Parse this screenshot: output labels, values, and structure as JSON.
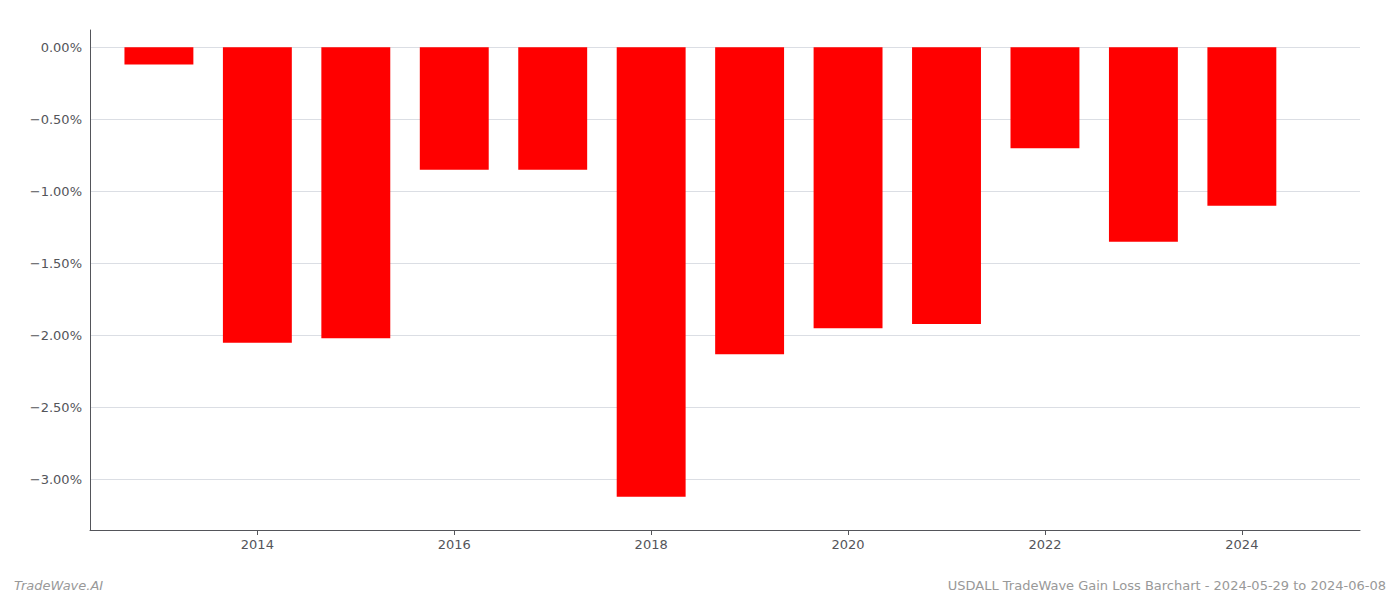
{
  "chart_data": {
    "type": "bar",
    "x": [
      2013,
      2014,
      2015,
      2016,
      2017,
      2018,
      2019,
      2020,
      2021,
      2022,
      2023,
      2024
    ],
    "values": [
      -0.12,
      -2.05,
      -2.02,
      -0.85,
      -0.85,
      -3.12,
      -2.13,
      -1.95,
      -1.92,
      -0.7,
      -1.35,
      -1.1
    ],
    "color": "#ff0000",
    "xlim": [
      2012.3,
      2025.2
    ],
    "xticks": [
      2014,
      2016,
      2018,
      2020,
      2022,
      2024
    ],
    "ylim": [
      -3.35,
      0.12
    ],
    "yticks": [
      {
        "value": 0.0,
        "label": "0.00%"
      },
      {
        "value": -0.5,
        "label": "−0.50%"
      },
      {
        "value": -1.0,
        "label": "−1.00%"
      },
      {
        "value": -1.5,
        "label": "−1.50%"
      },
      {
        "value": -2.0,
        "label": "−2.00%"
      },
      {
        "value": -2.5,
        "label": "−2.50%"
      },
      {
        "value": -3.0,
        "label": "−3.00%"
      }
    ],
    "grid": "y",
    "annotations": [
      "TradeWave.AI",
      "USDALL TradeWave Gain Loss Barchart - 2024-05-29 to 2024-06-08"
    ]
  }
}
